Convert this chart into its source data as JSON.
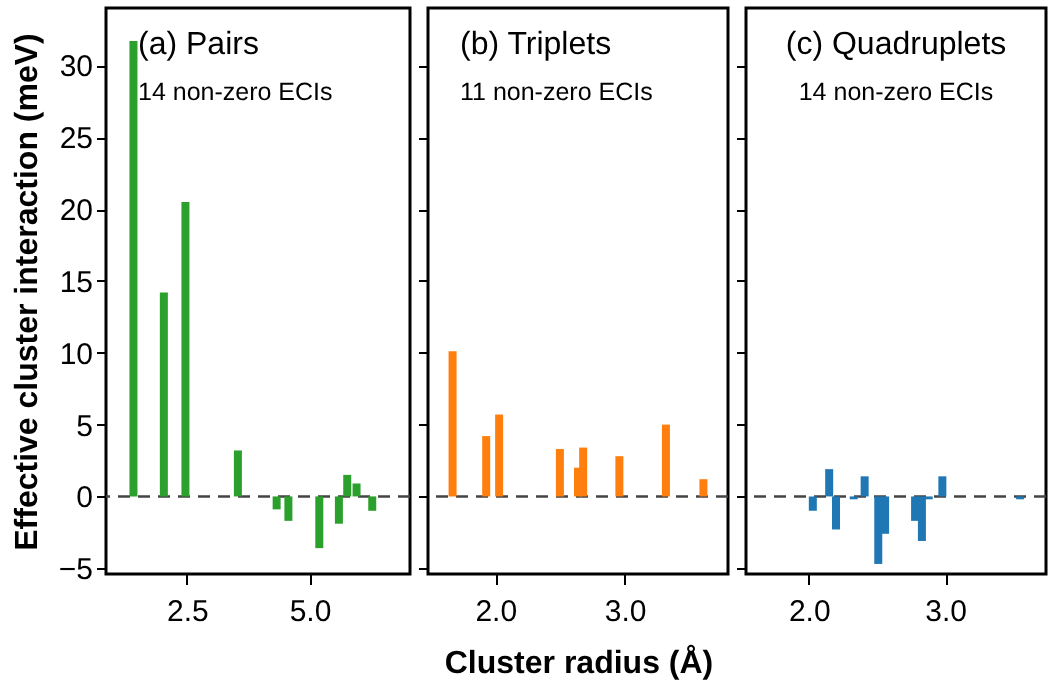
{
  "chart_data": [
    {
      "type": "bar",
      "title": "(a) Pairs",
      "subtitle": "14 non-zero ECIs",
      "ylabel": "Effective cluster interaction (meV)",
      "x": [
        1.41,
        2.03,
        2.47,
        3.54,
        4.33,
        4.57,
        5.2,
        5.6,
        5.77,
        5.96,
        6.28
      ],
      "values": [
        31.7,
        14.2,
        20.5,
        3.2,
        -0.9,
        -1.7,
        -3.6,
        -1.9,
        1.5,
        0.9,
        -1.0
      ],
      "color": "#2ca02c",
      "xlim": [
        0.85,
        7.05
      ],
      "xticks": [
        2.5,
        {
          "value": 5,
          "label": "5.0"
        }
      ],
      "ylim": [
        -5.4,
        34
      ],
      "yticks": [
        -5,
        0,
        5,
        10,
        15,
        20,
        25,
        30
      ],
      "ref_lines": [
        {
          "axis": "y",
          "value": 0,
          "line_style": "dashed"
        }
      ]
    },
    {
      "type": "bar",
      "title": "(b) Triplets",
      "subtitle": "11 non-zero ECIs",
      "xlabel": "Cluster radius (Å)",
      "x": [
        1.67,
        1.93,
        2.03,
        2.5,
        2.64,
        2.68,
        2.96,
        3.32,
        3.61
      ],
      "values": [
        10.1,
        4.2,
        5.7,
        3.3,
        2.0,
        3.4,
        2.8,
        5.0,
        1.2
      ],
      "color": "#ff7f0e",
      "xlim": [
        1.48,
        3.8
      ],
      "xticks": [
        {
          "value": 2,
          "label": "2.0"
        },
        {
          "value": 3,
          "label": "3.0"
        }
      ],
      "ylim": [
        -5.4,
        34
      ],
      "yticks": [
        -5,
        0,
        5,
        10,
        15,
        20,
        25,
        30
      ],
      "tick_labels": "x",
      "ref_lines": [
        {
          "axis": "y",
          "value": 0,
          "line_style": "dashed"
        }
      ]
    },
    {
      "type": "bar",
      "title": "(c) Quadruplets",
      "subtitle": "14 non-zero ECIs",
      "x": [
        2.03,
        2.15,
        2.2,
        2.33,
        2.41,
        2.51,
        2.56,
        2.78,
        2.83,
        2.88,
        2.98,
        3.55
      ],
      "values": [
        -1.0,
        1.9,
        -2.3,
        -0.2,
        1.4,
        -4.7,
        -2.6,
        -1.7,
        -3.1,
        -0.2,
        1.4,
        -0.2
      ],
      "color": "#1f77b4",
      "xlim": [
        1.54,
        3.74
      ],
      "xticks": [
        {
          "value": 2,
          "label": "2.0"
        },
        {
          "value": 3,
          "label": "3.0"
        }
      ],
      "ylim": [
        -5.4,
        34
      ],
      "yticks": [
        -5,
        0,
        5,
        10,
        15,
        20,
        25,
        30
      ],
      "tick_labels": "x",
      "ref_lines": [
        {
          "axis": "y",
          "value": 0,
          "line_style": "dashed"
        }
      ]
    }
  ]
}
